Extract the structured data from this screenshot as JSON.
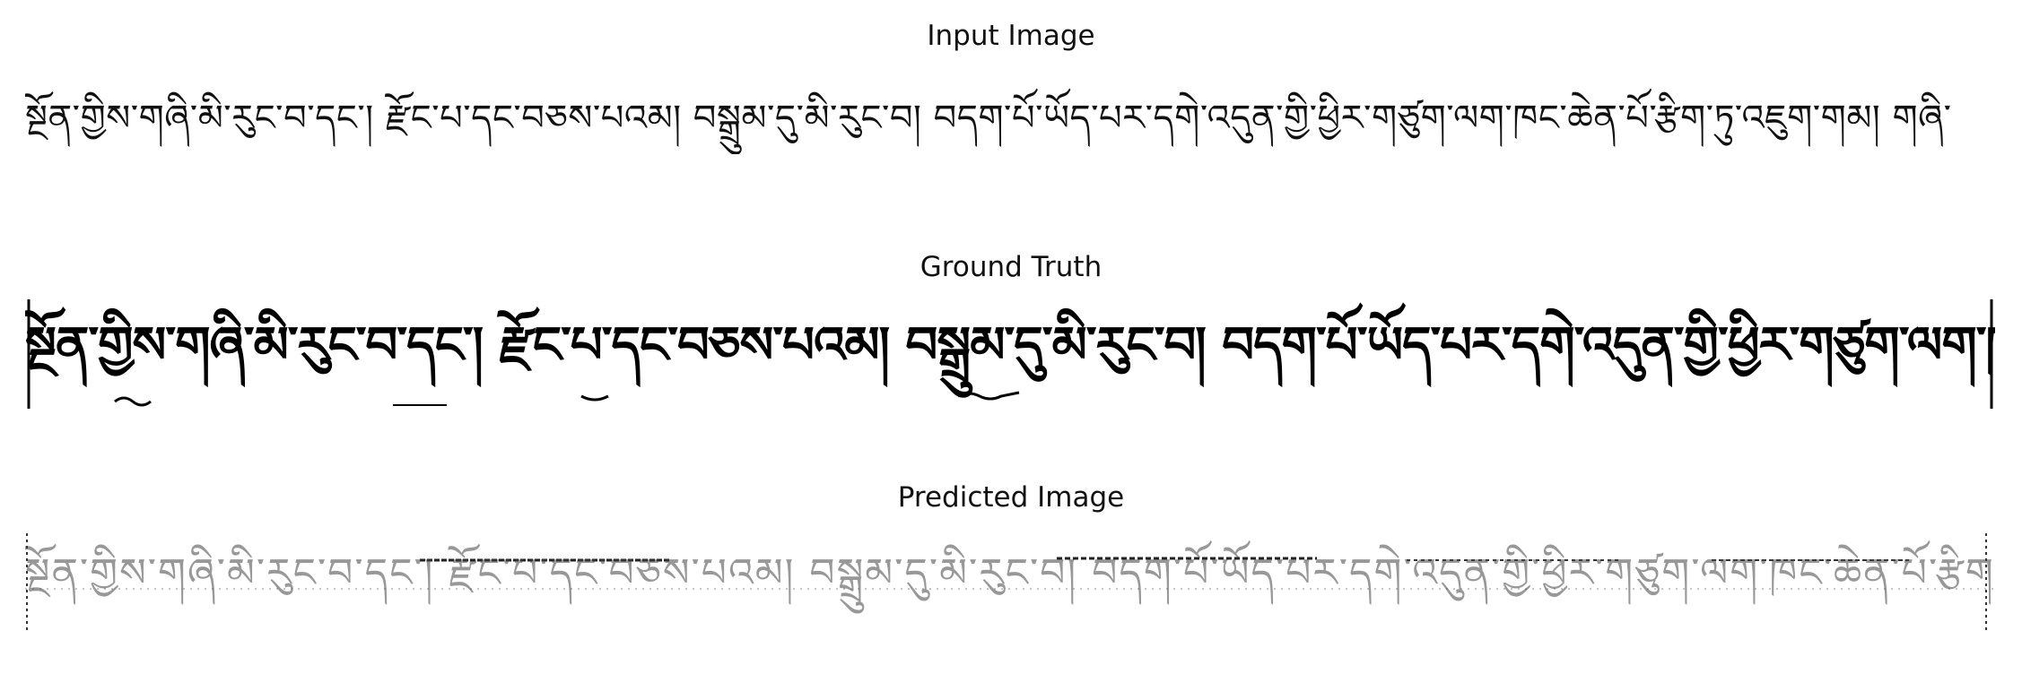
{
  "panels": {
    "input": {
      "title": "Input Image",
      "line_text": "སྔོན་གྱིས་གཞི་མི་རུང་བ་དང་། རྫོང་པ་དང་བཅས་པའམ། བསྒྲུམ་དུ་མི་རུང་བ། བདག་པོ་ཡོད་པར་དགེ་འདུན་གྱི་ཕྱིར་གཙུག་ལག་ཁང་ཆེན་པོ་རྩིག་ཏུ་འཇུག་གམ། གཞི་"
    },
    "ground_truth": {
      "title": "Ground Truth",
      "line_text": "སྔོན་གྱིས་གཞི་མི་རུང་བ་དང་། རྫོང་པ་དང་བཅས་པའམ། བསྒྲུམ་དུ་མི་རུང་བ། བདག་པོ་ཡོད་པར་དགེ་འདུན་གྱི་ཕྱིར་གཙུག་ལག་ཁང་ཆེན་པོ་རྩིག་ཏུ་འཇུག་གམ། གཞི་"
    },
    "predicted": {
      "title": "Predicted Image",
      "line_text": "སྔོན་གྱིས་གཞི་མི་རུང་བ་དང་། རྫོང་པ་དང་བཅས་པའམ། བསྒྲུམ་དུ་མི་རུང་བ། བདག་པོ་ཡོད་པར་དགེ་འདུན་གྱི་ཕྱིར་གཙུག་ལག་ཁང་ཆེན་པོ་རྩིག་ཏུ་འཇུག་གམ། གཞི་"
    }
  },
  "colors": {
    "background": "#ffffff",
    "ink": "#111111"
  }
}
